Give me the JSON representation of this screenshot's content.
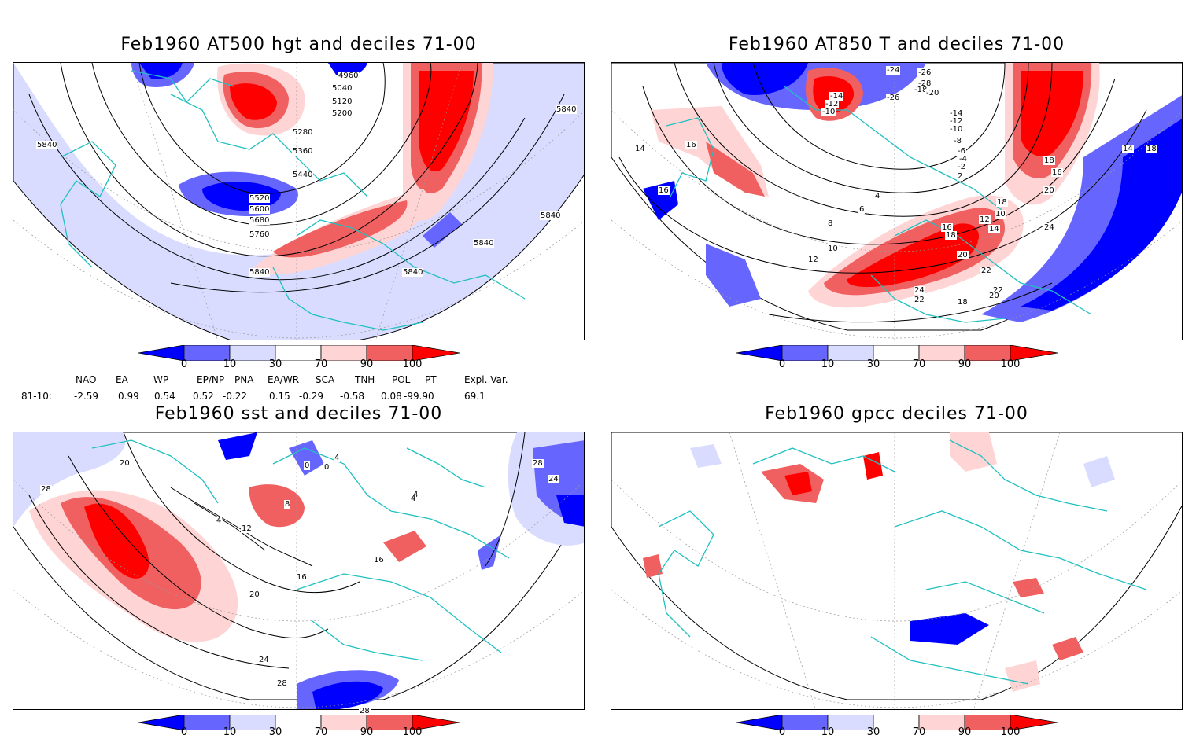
{
  "panels": [
    {
      "id": "hgt",
      "title": "Feb1960 AT500 hgt and deciles 71-00",
      "contour_labels": [
        "4960",
        "5040",
        "5120",
        "5200",
        "5280",
        "5360",
        "5440",
        "5520",
        "5600",
        "5680",
        "5760",
        "5840",
        "5840",
        "5840",
        "5840",
        "5840",
        "5840"
      ]
    },
    {
      "id": "t850",
      "title": "Feb1960 AT850 T and deciles 71-00",
      "contour_labels": [
        "-24",
        "-26",
        "-28",
        "-18",
        "-20",
        "-26",
        "-14",
        "-12",
        "-10",
        "-14",
        "-12",
        "-10",
        "-8",
        "-6",
        "-4",
        "-2",
        "2",
        "4",
        "6",
        "8",
        "10",
        "12",
        "14",
        "16",
        "16",
        "18",
        "18",
        "16",
        "18",
        "14",
        "20",
        "24",
        "10",
        "12",
        "14",
        "16",
        "18",
        "20",
        "22",
        "24",
        "22",
        "22",
        "20",
        "18"
      ]
    },
    {
      "id": "sst",
      "title": "Feb1960 sst and deciles 71-00",
      "contour_labels": [
        "20",
        "28",
        "0",
        "4",
        "8",
        "12",
        "16",
        "20",
        "24",
        "28",
        "28",
        "24",
        "28",
        "0",
        "4",
        "4",
        "16",
        "4"
      ]
    },
    {
      "id": "gpcc",
      "title": "Feb1960 gpcc deciles 71-00",
      "contour_labels": []
    }
  ],
  "colorbar": {
    "ticks": [
      "0",
      "10",
      "30",
      "70",
      "90",
      "100"
    ],
    "colors": {
      "dark_blue": "#0000ff",
      "mid_blue": "#6666ff",
      "light_blue": "#d9dcff",
      "white": "#ffffff",
      "light_red": "#ffd4d4",
      "mid_red": "#f06060",
      "dark_red": "#ff0000"
    }
  },
  "indices": {
    "headers": [
      "NAO",
      "EA",
      "WP",
      "EP/NP",
      "PNA",
      "EA/WR",
      "SCA",
      "TNH",
      "POL",
      "PT",
      "Expl. Var."
    ],
    "row_label": "81-10:",
    "values": [
      "-2.59",
      "0.99",
      "0.54",
      "0.52",
      "-0.22",
      "0.15",
      "-0.29",
      "-0.58",
      "0.08",
      "-99.90",
      "69.1"
    ]
  },
  "colors": {
    "coastline": "#20c0c0",
    "contour": "#000000",
    "grid": "#999999"
  }
}
